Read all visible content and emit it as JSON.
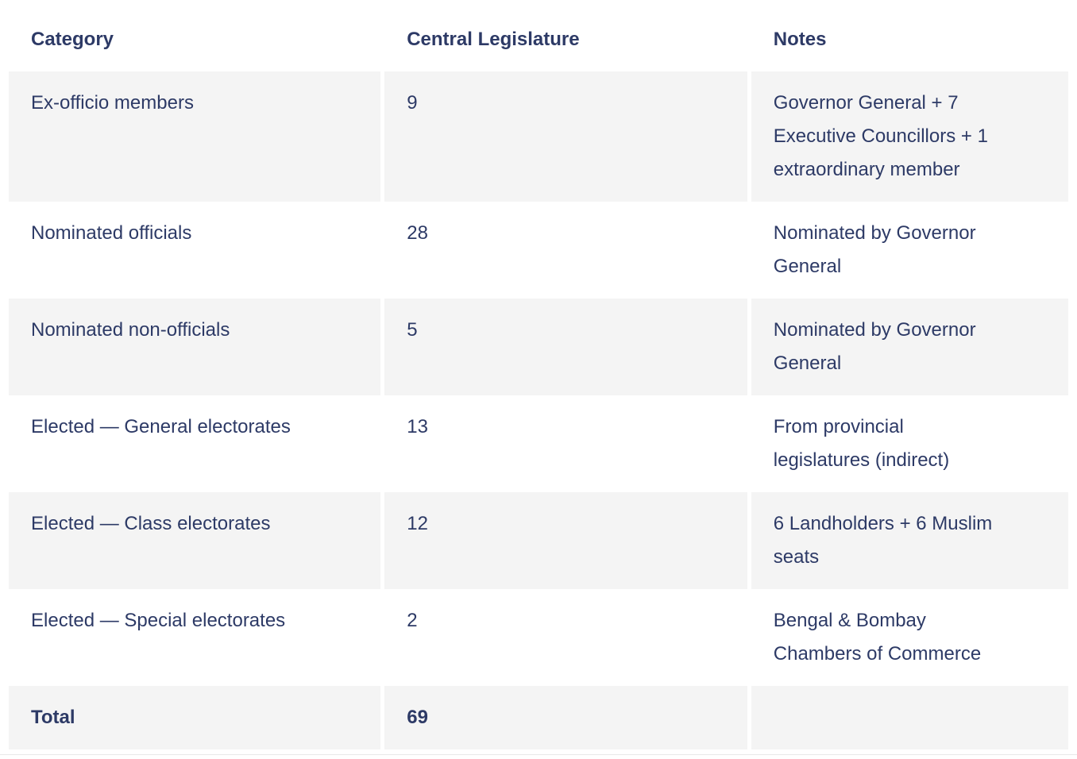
{
  "colors": {
    "text": "#2d3a66",
    "row_stripe_background": "#f4f4f4",
    "row_background": "#ffffff",
    "cell_gap": "#ffffff",
    "page_divider": "#e9e9e9"
  },
  "table": {
    "headers": [
      {
        "label": "Category"
      },
      {
        "label": "Central Legislature"
      },
      {
        "label": "Notes"
      }
    ],
    "rows": [
      {
        "category": "Ex-officio members",
        "central_legislature": "9",
        "notes": "Governor General + 7\nExecutive Councillors + 1\nextraordinary member",
        "emphasis": false
      },
      {
        "category": "Nominated officials",
        "central_legislature": "28",
        "notes": "Nominated by Governor\nGeneral",
        "emphasis": false
      },
      {
        "category": "Nominated non-officials",
        "central_legislature": "5",
        "notes": "Nominated by Governor\nGeneral",
        "emphasis": false
      },
      {
        "category": "Elected — General electorates",
        "central_legislature": "13",
        "notes": "From provincial\nlegislatures (indirect)",
        "emphasis": false
      },
      {
        "category": "Elected — Class electorates",
        "central_legislature": "12",
        "notes": "6 Landholders + 6 Muslim\nseats",
        "emphasis": false
      },
      {
        "category": "Elected — Special electorates",
        "central_legislature": "2",
        "notes": "Bengal & Bombay\nChambers of Commerce",
        "emphasis": false
      },
      {
        "category": "Total",
        "central_legislature": "69",
        "notes": "",
        "emphasis": true
      }
    ]
  }
}
